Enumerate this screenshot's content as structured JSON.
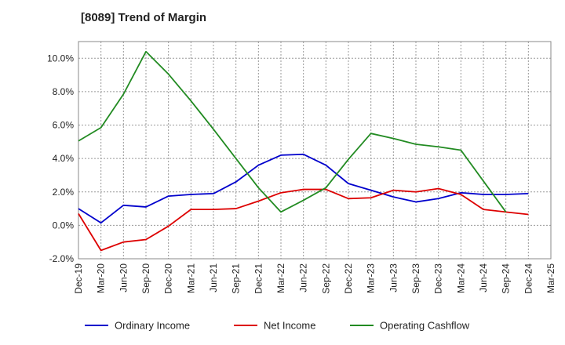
{
  "chart_data": {
    "type": "line",
    "title": "[8089]  Trend of Margin",
    "xlabel": "",
    "ylabel": "",
    "categories": [
      "Dec-19",
      "Mar-20",
      "Jun-20",
      "Sep-20",
      "Dec-20",
      "Mar-21",
      "Jun-21",
      "Sep-21",
      "Dec-21",
      "Mar-22",
      "Jun-22",
      "Sep-22",
      "Dec-22",
      "Mar-23",
      "Jun-23",
      "Sep-23",
      "Dec-23",
      "Mar-24",
      "Jun-24",
      "Sep-24",
      "Dec-24",
      "Mar-25"
    ],
    "ylim": [
      -2.0,
      11.0
    ],
    "yticks": [
      -2.0,
      0.0,
      2.0,
      4.0,
      6.0,
      8.0,
      10.0
    ],
    "ytick_labels": [
      "-2.0%",
      "0.0%",
      "2.0%",
      "4.0%",
      "6.0%",
      "8.0%",
      "10.0%"
    ],
    "grid": true,
    "legend_position": "bottom",
    "series": [
      {
        "name": "Ordinary Income",
        "color": "#0000cc",
        "values": [
          1.0,
          0.15,
          1.2,
          1.1,
          1.75,
          1.85,
          1.9,
          2.6,
          3.6,
          4.2,
          4.25,
          3.6,
          2.5,
          2.1,
          1.7,
          1.4,
          1.6,
          1.95,
          1.85,
          1.85,
          1.9,
          null
        ]
      },
      {
        "name": "Net Income",
        "color": "#dd0000",
        "values": [
          0.7,
          -1.5,
          -1.0,
          -0.85,
          -0.05,
          0.95,
          0.95,
          1.0,
          1.45,
          1.95,
          2.15,
          2.15,
          1.6,
          1.65,
          2.1,
          2.0,
          2.2,
          1.85,
          0.95,
          0.8,
          0.65,
          null
        ]
      },
      {
        "name": "Operating Cashflow",
        "color": "#228B22",
        "values": [
          5.05,
          5.85,
          7.85,
          10.4,
          9.05,
          7.45,
          5.75,
          4.0,
          2.25,
          0.8,
          1.5,
          2.25,
          3.95,
          5.5,
          5.2,
          4.85,
          4.7,
          4.5,
          2.65,
          0.8,
          null,
          null
        ]
      }
    ]
  }
}
